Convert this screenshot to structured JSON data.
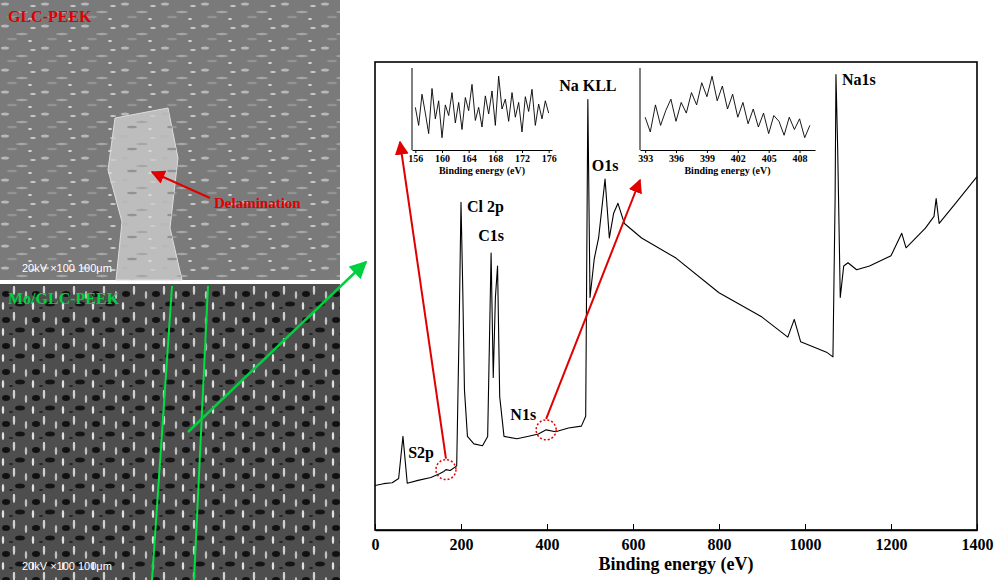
{
  "images": [
    {
      "label": "GLC-PEEK",
      "annotation": "Delamination",
      "scale_text": "20kV ×100 100μm"
    },
    {
      "label": "Mo/GLC-PEEK",
      "scale_text": "20kV ×100 100μm"
    }
  ],
  "chart_data": [
    {
      "type": "line",
      "x_label": "Binding energy (eV)",
      "color": "#000000",
      "x": [
        0,
        20,
        40,
        55,
        65,
        75,
        100,
        130,
        150,
        160,
        165,
        175,
        190,
        196,
        200,
        204,
        208,
        215,
        230,
        250,
        262,
        270,
        275,
        280,
        285,
        290,
        300,
        330,
        360,
        380,
        398,
        420,
        450,
        480,
        490,
        495,
        500,
        510,
        520,
        535,
        545,
        555,
        565,
        580,
        620,
        700,
        800,
        900,
        960,
        975,
        990,
        1050,
        1065,
        1070,
        1072,
        1076,
        1082,
        1090,
        1100,
        1120,
        1150,
        1200,
        1225,
        1235,
        1280,
        1300,
        1305,
        1312,
        1350,
        1400
      ],
      "values": [
        9.5,
        9.9,
        10.1,
        11,
        20,
        10,
        10.6,
        11.2,
        12,
        12.5,
        12.9,
        12.7,
        13.7,
        45,
        70,
        52,
        30,
        20,
        18.4,
        18,
        20,
        59.2,
        32.6,
        49.7,
        56.4,
        28.5,
        20,
        19.5,
        20.1,
        20.5,
        21.4,
        21,
        21.8,
        22.2,
        24.3,
        92,
        49.7,
        58,
        62.4,
        75,
        62.4,
        67.7,
        69.8,
        65.5,
        62.4,
        58.1,
        50.7,
        45.5,
        41.2,
        45,
        40.2,
        38,
        37,
        70.8,
        97.3,
        81.4,
        49.7,
        56.4,
        57.1,
        55.6,
        56.4,
        58.6,
        63.4,
        60.3,
        64.5,
        67,
        70.8,
        65.5,
        69.8,
        75.5
      ],
      "xlim": [
        0,
        1400
      ],
      "xticks": [
        0,
        200,
        400,
        600,
        800,
        1000,
        1200,
        1400
      ],
      "ylim": [
        0,
        100
      ],
      "tick_labels": "x",
      "annotations": [
        {
          "text": "S2p",
          "x": 165,
          "y": 12.9
        },
        {
          "text": "N1s",
          "x": 398,
          "y": 21.4
        },
        {
          "text": "Cl 2p",
          "x": 200,
          "y": 70
        },
        {
          "text": "C1s",
          "x": 270,
          "y": 59.2
        },
        {
          "text": "Na KLL",
          "x": 495,
          "y": 92
        },
        {
          "text": "O1s",
          "x": 535,
          "y": 75
        },
        {
          "text": "Na1s",
          "x": 1072,
          "y": 97.3
        }
      ]
    },
    {
      "type": "line",
      "x_label": "Binding energy (eV)",
      "color": "#000000",
      "x": [
        156,
        156.5,
        157,
        157.5,
        158,
        158.5,
        159,
        159.5,
        160,
        160.5,
        161,
        161.5,
        162,
        162.5,
        163,
        163.5,
        164,
        164.5,
        165,
        165.5,
        166,
        166.5,
        167,
        167.5,
        168,
        168.5,
        169,
        169.5,
        170,
        170.5,
        171,
        171.5,
        172,
        172.5,
        173,
        173.5,
        174,
        174.5,
        175,
        175.5,
        176
      ],
      "values": [
        52,
        30,
        68,
        45,
        20,
        75,
        38,
        60,
        15,
        55,
        42,
        70,
        33,
        58,
        25,
        64,
        48,
        80,
        36,
        52,
        28,
        66,
        44,
        72,
        30,
        90,
        50,
        62,
        35,
        70,
        40,
        58,
        22,
        65,
        47,
        74,
        30,
        56,
        38,
        60,
        45
      ],
      "xlim": [
        155.5,
        176.5
      ],
      "xticks": [
        156,
        160,
        164,
        168,
        172,
        176
      ],
      "ylim": [
        0,
        100
      ],
      "tick_labels": "x"
    },
    {
      "type": "line",
      "x_label": "Binding energy (eV)",
      "color": "#000000",
      "x": [
        393,
        393.5,
        394,
        394.5,
        395,
        395.5,
        396,
        396.5,
        397,
        397.5,
        398,
        398.5,
        399,
        399.5,
        400,
        400.5,
        401,
        401.5,
        402,
        402.5,
        403,
        403.5,
        404,
        404.5,
        405,
        405.5,
        406,
        406.5,
        407,
        407.5,
        408,
        408.5,
        409
      ],
      "values": [
        40,
        22,
        55,
        30,
        48,
        62,
        35,
        58,
        45,
        70,
        55,
        82,
        65,
        90,
        60,
        78,
        50,
        68,
        40,
        58,
        32,
        50,
        28,
        45,
        20,
        42,
        35,
        18,
        40,
        25,
        38,
        15,
        30
      ],
      "xlim": [
        392.5,
        409.5
      ],
      "xticks": [
        393,
        396,
        399,
        402,
        405,
        408
      ],
      "ylim": [
        0,
        100
      ],
      "tick_labels": "x"
    }
  ]
}
